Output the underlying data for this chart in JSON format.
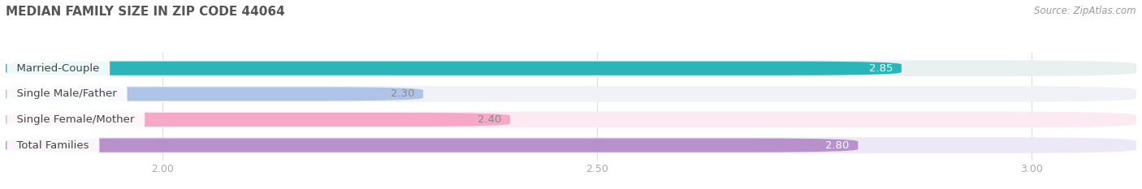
{
  "title": "MEDIAN FAMILY SIZE IN ZIP CODE 44064",
  "source": "Source: ZipAtlas.com",
  "categories": [
    "Married-Couple",
    "Single Male/Father",
    "Single Female/Mother",
    "Total Families"
  ],
  "values": [
    2.85,
    2.3,
    2.4,
    2.8
  ],
  "bar_colors": [
    "#2bb5b8",
    "#b0c4e8",
    "#f5a8c8",
    "#b890cc"
  ],
  "bar_bg_colors": [
    "#e8f0f0",
    "#f0f2f8",
    "#fceaf2",
    "#ede8f5"
  ],
  "value_text_colors": [
    "white",
    "#888888",
    "#888888",
    "white"
  ],
  "xlim": [
    1.82,
    3.12
  ],
  "xticks": [
    2.0,
    2.5,
    3.0
  ],
  "bar_height": 0.62,
  "label_fontsize": 9.5,
  "value_fontsize": 9.5,
  "title_fontsize": 11,
  "source_fontsize": 8.5,
  "bg_color": "#ffffff",
  "grid_color": "#dddddd",
  "tick_color": "#aaaaaa"
}
